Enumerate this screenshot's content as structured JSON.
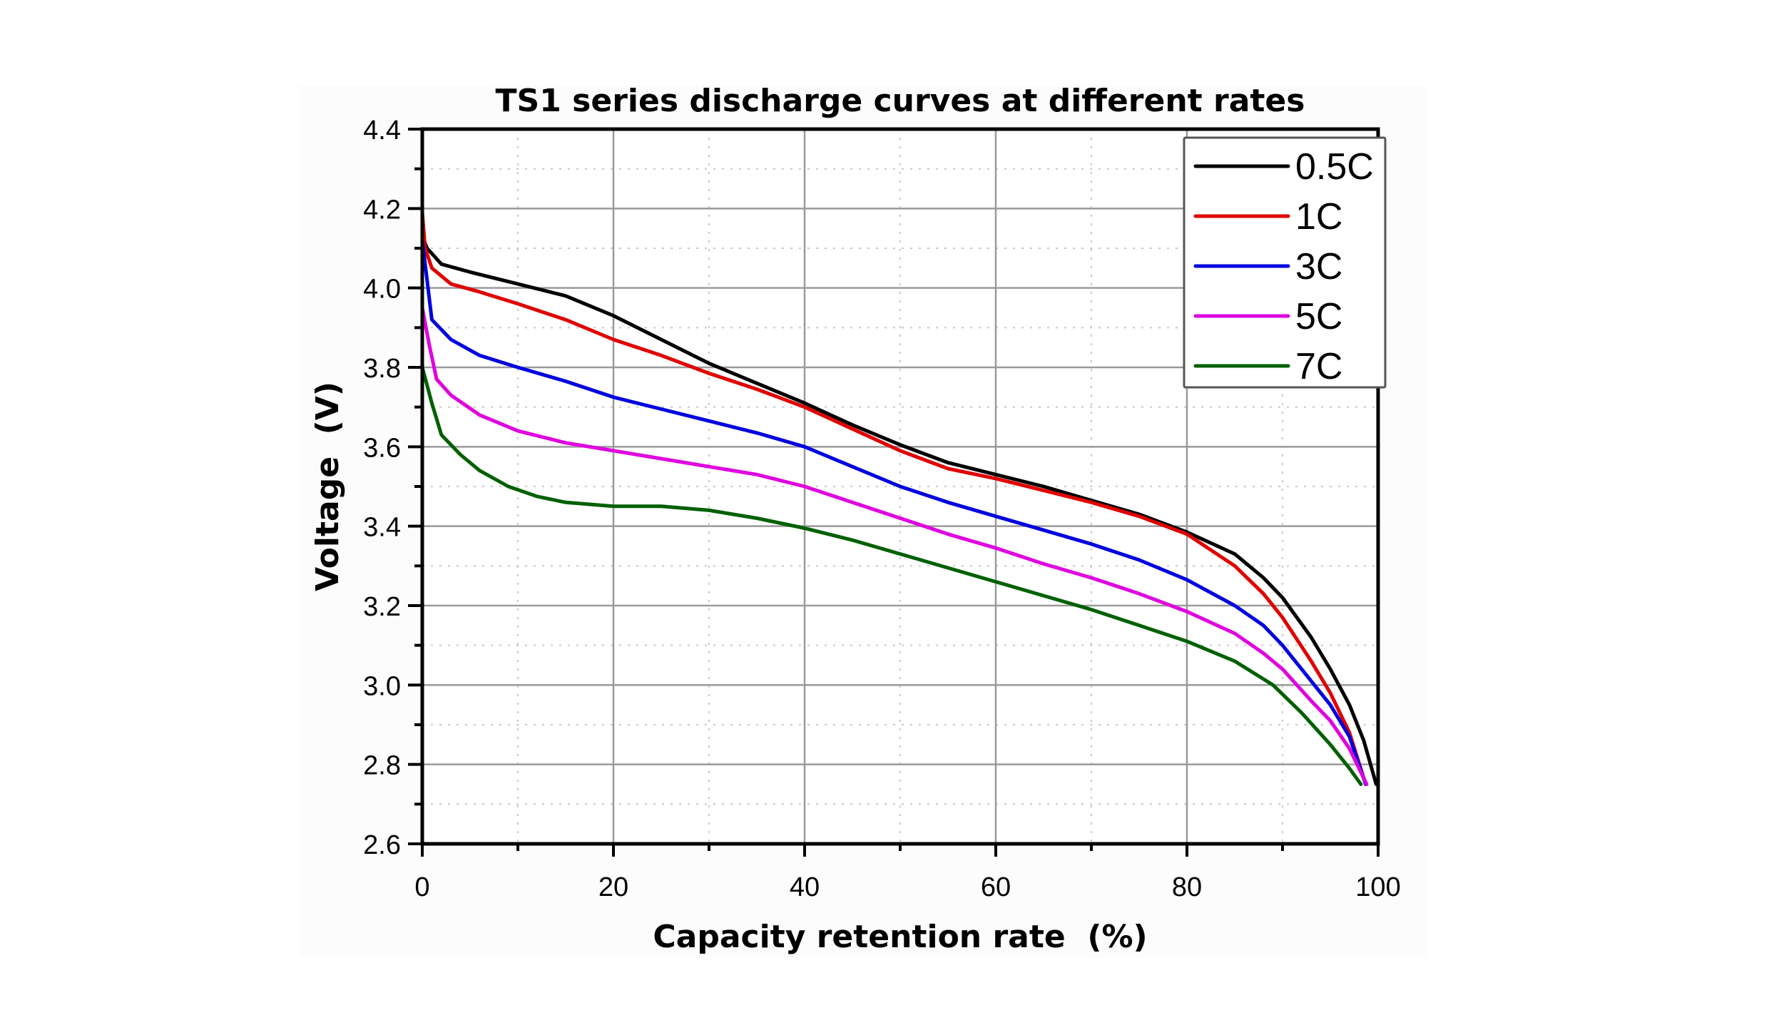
{
  "chart_data": {
    "type": "line",
    "title": "TS1 series discharge curves at different rates",
    "xlabel": "Capacity retention rate  (%)",
    "ylabel": "Voltage  (V)",
    "xlim": [
      0,
      100
    ],
    "ylim": [
      2.6,
      4.4
    ],
    "xticks": [
      0,
      20,
      40,
      60,
      80,
      100
    ],
    "xtick_labels": [
      "0",
      "20",
      "40",
      "60",
      "80",
      "100"
    ],
    "xminor_step": 10,
    "yticks": [
      2.6,
      2.8,
      3.0,
      3.2,
      3.4,
      3.6,
      3.8,
      4.0,
      4.2,
      4.4
    ],
    "ytick_labels": [
      "2.6",
      "2.8",
      "3.0",
      "3.2",
      "3.4",
      "3.6",
      "3.8",
      "4.0",
      "4.2",
      "4.4"
    ],
    "yminor_step": 0.1,
    "grid": true,
    "legend_position": "top-right",
    "series": [
      {
        "name": "0.5C",
        "color": "#000000",
        "x": [
          0,
          0.5,
          2,
          5,
          10,
          15,
          20,
          25,
          30,
          35,
          40,
          45,
          50,
          55,
          60,
          65,
          70,
          75,
          80,
          85,
          88,
          90,
          93,
          95,
          97,
          98.5,
          99.8
        ],
        "y": [
          4.13,
          4.1,
          4.06,
          4.04,
          4.01,
          3.98,
          3.93,
          3.87,
          3.81,
          3.76,
          3.71,
          3.655,
          3.605,
          3.56,
          3.53,
          3.5,
          3.465,
          3.43,
          3.385,
          3.33,
          3.27,
          3.22,
          3.12,
          3.04,
          2.95,
          2.86,
          2.75
        ]
      },
      {
        "name": "1C",
        "color": "#e00000",
        "x": [
          0,
          0.3,
          1,
          3,
          6,
          10,
          15,
          20,
          25,
          30,
          35,
          40,
          45,
          50,
          55,
          60,
          65,
          70,
          75,
          80,
          85,
          88,
          90,
          93,
          95,
          97,
          98.7
        ],
        "y": [
          4.19,
          4.1,
          4.05,
          4.01,
          3.99,
          3.96,
          3.92,
          3.87,
          3.83,
          3.785,
          3.745,
          3.7,
          3.645,
          3.59,
          3.545,
          3.52,
          3.49,
          3.46,
          3.425,
          3.38,
          3.3,
          3.23,
          3.17,
          3.06,
          2.98,
          2.88,
          2.75
        ]
      },
      {
        "name": "3C",
        "color": "#0000e0",
        "x": [
          0,
          0.5,
          1,
          3,
          6,
          10,
          15,
          20,
          25,
          30,
          35,
          40,
          45,
          50,
          55,
          60,
          65,
          70,
          75,
          80,
          85,
          88,
          90,
          93,
          95,
          97,
          98.7
        ],
        "y": [
          4.12,
          4.02,
          3.92,
          3.87,
          3.83,
          3.8,
          3.765,
          3.725,
          3.695,
          3.665,
          3.635,
          3.6,
          3.55,
          3.5,
          3.46,
          3.425,
          3.39,
          3.355,
          3.315,
          3.265,
          3.2,
          3.15,
          3.1,
          3.01,
          2.95,
          2.87,
          2.75
        ]
      },
      {
        "name": "5C",
        "color": "#e000e0",
        "x": [
          0,
          0.7,
          1.5,
          3,
          6,
          10,
          15,
          20,
          25,
          30,
          35,
          40,
          45,
          50,
          55,
          60,
          65,
          70,
          75,
          80,
          85,
          88,
          90,
          93,
          95,
          97,
          98.8
        ],
        "y": [
          3.95,
          3.86,
          3.77,
          3.73,
          3.68,
          3.64,
          3.61,
          3.59,
          3.57,
          3.55,
          3.53,
          3.5,
          3.46,
          3.42,
          3.38,
          3.345,
          3.305,
          3.27,
          3.23,
          3.185,
          3.13,
          3.08,
          3.04,
          2.96,
          2.91,
          2.84,
          2.75
        ]
      },
      {
        "name": "7C",
        "color": "#006000",
        "x": [
          0,
          1,
          2,
          4,
          6,
          9,
          12,
          15,
          20,
          25,
          30,
          35,
          40,
          45,
          50,
          55,
          60,
          65,
          70,
          75,
          80,
          85,
          89,
          92,
          95,
          97,
          98.2
        ],
        "y": [
          3.8,
          3.71,
          3.63,
          3.58,
          3.54,
          3.5,
          3.475,
          3.46,
          3.45,
          3.45,
          3.44,
          3.42,
          3.395,
          3.365,
          3.33,
          3.295,
          3.26,
          3.225,
          3.19,
          3.15,
          3.11,
          3.06,
          3.0,
          2.93,
          2.85,
          2.79,
          2.75
        ]
      }
    ]
  }
}
